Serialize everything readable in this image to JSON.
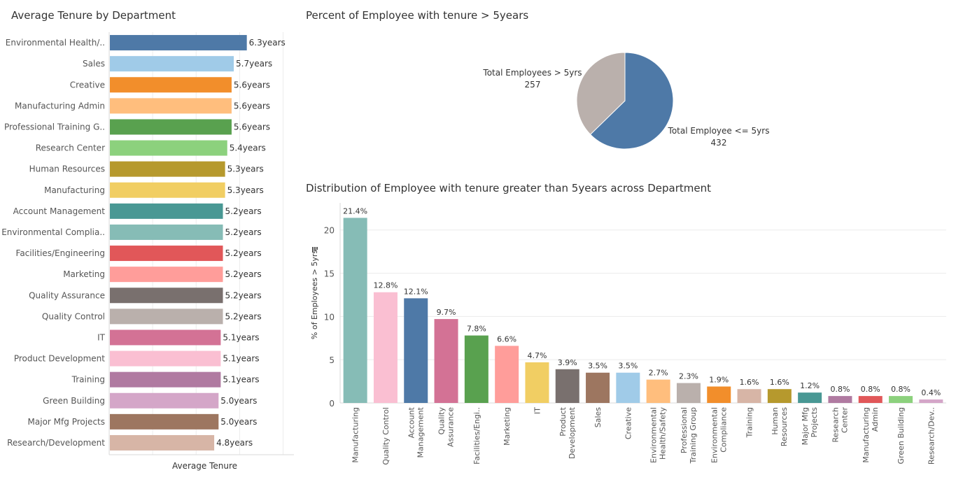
{
  "titles": {
    "avg_tenure": "Average Tenure by Department",
    "pie": "Percent of Employee with tenure > 5years",
    "distribution": "Distribution of Employee with tenure greater than 5years across Department"
  },
  "chart_data": [
    {
      "type": "bar",
      "orientation": "horizontal",
      "title": "Average Tenure by Department",
      "xlabel": "Average Tenure",
      "ylabel": "",
      "value_suffix": "years",
      "categories": [
        "Environmental Health/..",
        "Sales",
        "Creative",
        "Manufacturing Admin",
        "Professional Training G..",
        "Research Center",
        "Human Resources",
        "Manufacturing",
        "Account Management",
        "Environmental Complia..",
        "Facilities/Engineering",
        "Marketing",
        "Quality Assurance",
        "Quality Control",
        "IT",
        "Product Development",
        "Training",
        "Green Building",
        "Major Mfg Projects",
        "Research/Development"
      ],
      "values": [
        6.3,
        5.7,
        5.6,
        5.6,
        5.6,
        5.4,
        5.3,
        5.3,
        5.2,
        5.2,
        5.2,
        5.2,
        5.2,
        5.2,
        5.1,
        5.1,
        5.1,
        5.0,
        5.0,
        4.8
      ],
      "value_labels": [
        "6.3years",
        "5.7years",
        "5.6years",
        "5.6years",
        "5.6years",
        "5.4years",
        "5.3years",
        "5.3years",
        "5.2years",
        "5.2years",
        "5.2years",
        "5.2years",
        "5.2years",
        "5.2years",
        "5.1years",
        "5.1years",
        "5.1years",
        "5.0years",
        "5.0years",
        "4.8years"
      ],
      "colors": [
        "#4e79a7",
        "#a0cbe8",
        "#f28e2b",
        "#ffbe7d",
        "#59a14f",
        "#8cd17d",
        "#b6992d",
        "#f1ce63",
        "#499894",
        "#86bcb6",
        "#e15759",
        "#ff9d9a",
        "#79706e",
        "#bab0ac",
        "#d37295",
        "#fabfd2",
        "#b07aa1",
        "#d4a6c8",
        "#9d7660",
        "#d7b5a6"
      ],
      "xlim": [
        0,
        8.5
      ],
      "grid": true
    },
    {
      "type": "pie",
      "title": "Percent of Employee with tenure > 5years",
      "slices": [
        {
          "label": "Total Employee <= 5yrs",
          "value": 432,
          "color": "#4e79a7"
        },
        {
          "label": "Total Employees > 5yrs",
          "value": 257,
          "color": "#bab0ac"
        }
      ]
    },
    {
      "type": "bar",
      "orientation": "vertical",
      "title": "Distribution of Employee with tenure greater than 5years across Department",
      "ylabel": "% of Employees > 5yrs",
      "xlabel": "",
      "categories": [
        "Manufacturing",
        "Quality Control",
        "Account Management",
        "Quality Assurance",
        "Facilities/Engi..",
        "Marketing",
        "IT",
        "Product Development",
        "Sales",
        "Creative",
        "Environmental Health/Safety",
        "Professional Training Group",
        "Environmental Compliance",
        "Training",
        "Human Resources",
        "Major Mfg Projects",
        "Research Center",
        "Manufacturing Admin",
        "Green Building",
        "Research/Dev.."
      ],
      "tick_labels": [
        [
          "Manufacturing"
        ],
        [
          "Quality Control"
        ],
        [
          "Account",
          "Management"
        ],
        [
          "Quality",
          "Assurance"
        ],
        [
          "Facilities/Engi.."
        ],
        [
          "Marketing"
        ],
        [
          "IT"
        ],
        [
          "Product",
          "Development"
        ],
        [
          "Sales"
        ],
        [
          "Creative"
        ],
        [
          "Environmental",
          "Health/Safety"
        ],
        [
          "Professional",
          "Training Group"
        ],
        [
          "Environmental",
          "Compliance"
        ],
        [
          "Training"
        ],
        [
          "Human",
          "Resources"
        ],
        [
          "Major Mfg",
          "Projects"
        ],
        [
          "Research",
          "Center"
        ],
        [
          "Manufacturing",
          "Admin"
        ],
        [
          "Green Building"
        ],
        [
          "Research/Dev.."
        ]
      ],
      "values": [
        21.4,
        12.8,
        12.1,
        9.7,
        7.8,
        6.6,
        4.7,
        3.9,
        3.5,
        3.5,
        2.7,
        2.3,
        1.9,
        1.6,
        1.6,
        1.2,
        0.8,
        0.8,
        0.8,
        0.4
      ],
      "value_labels": [
        "21.4%",
        "12.8%",
        "12.1%",
        "9.7%",
        "7.8%",
        "6.6%",
        "4.7%",
        "3.9%",
        "3.5%",
        "3.5%",
        "2.7%",
        "2.3%",
        "1.9%",
        "1.6%",
        "1.6%",
        "1.2%",
        "0.8%",
        "0.8%",
        "0.8%",
        "0.4%"
      ],
      "colors": [
        "#86bcb6",
        "#fabfd2",
        "#4e79a7",
        "#d37295",
        "#59a14f",
        "#ff9d9a",
        "#f1ce63",
        "#79706e",
        "#9d7660",
        "#a0cbe8",
        "#ffbe7d",
        "#bab0ac",
        "#f28e2b",
        "#d7b5a6",
        "#b6992d",
        "#499894",
        "#b07aa1",
        "#e15759",
        "#8cd17d",
        "#d4a6c8"
      ],
      "ylim": [
        0,
        22
      ],
      "yticks": [
        0,
        5,
        10,
        15,
        20
      ],
      "grid": true
    }
  ]
}
